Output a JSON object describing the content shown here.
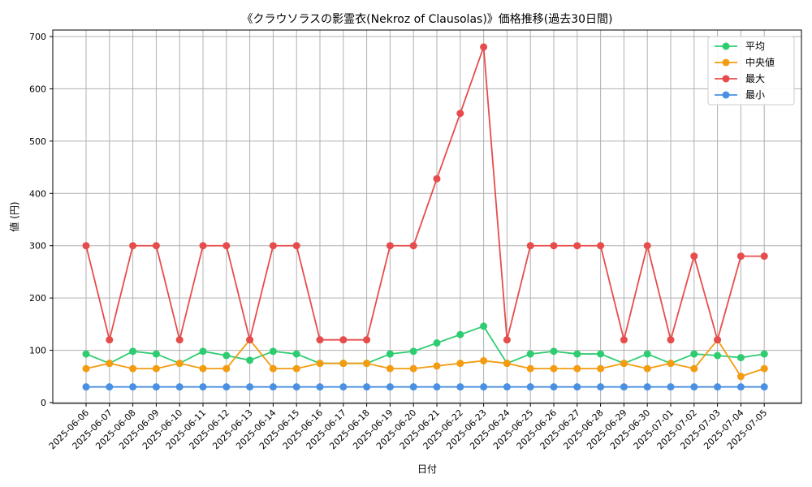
{
  "chart_data": {
    "type": "line",
    "title": "《クラウソラスの影霊衣(Nekroz of Clausolas)》価格推移(過去30日間)",
    "xlabel": "日付",
    "ylabel": "値 (円)",
    "ylim": [
      0,
      700
    ],
    "yticks": [
      0,
      100,
      200,
      300,
      400,
      500,
      600,
      700
    ],
    "grid": true,
    "legend_position": "top-right",
    "categories": [
      "2025-06-06",
      "2025-06-07",
      "2025-06-08",
      "2025-06-09",
      "2025-06-10",
      "2025-06-11",
      "2025-06-12",
      "2025-06-13",
      "2025-06-14",
      "2025-06-15",
      "2025-06-16",
      "2025-06-17",
      "2025-06-18",
      "2025-06-19",
      "2025-06-20",
      "2025-06-21",
      "2025-06-22",
      "2025-06-23",
      "2025-06-24",
      "2025-06-25",
      "2025-06-26",
      "2025-06-27",
      "2025-06-28",
      "2025-06-29",
      "2025-06-30",
      "2025-07-01",
      "2025-07-02",
      "2025-07-03",
      "2025-07-04",
      "2025-07-05"
    ],
    "series": [
      {
        "name": "平均",
        "color": "#2ecc71",
        "values": [
          93,
          75,
          98,
          93,
          75,
          98,
          90,
          81,
          98,
          93,
          75,
          75,
          75,
          93,
          98,
          114,
          130,
          146,
          75,
          93,
          98,
          93,
          93,
          75,
          93,
          75,
          93,
          90,
          86,
          93
        ]
      },
      {
        "name": "中央値",
        "color": "#f39c12",
        "values": [
          65,
          75,
          65,
          65,
          75,
          65,
          65,
          120,
          65,
          65,
          75,
          75,
          75,
          65,
          65,
          70,
          75,
          80,
          75,
          65,
          65,
          65,
          65,
          75,
          65,
          75,
          65,
          120,
          50,
          65
        ]
      },
      {
        "name": "最大",
        "color": "#e74c4c",
        "values": [
          300,
          120,
          300,
          300,
          120,
          300,
          300,
          120,
          300,
          300,
          120,
          120,
          120,
          300,
          300,
          428,
          553,
          680,
          120,
          300,
          300,
          300,
          300,
          120,
          300,
          120,
          280,
          120,
          280,
          280
        ]
      },
      {
        "name": "最小",
        "color": "#4a90e2",
        "values": [
          30,
          30,
          30,
          30,
          30,
          30,
          30,
          30,
          30,
          30,
          30,
          30,
          30,
          30,
          30,
          30,
          30,
          30,
          30,
          30,
          30,
          30,
          30,
          30,
          30,
          30,
          30,
          30,
          30,
          30
        ]
      }
    ]
  }
}
